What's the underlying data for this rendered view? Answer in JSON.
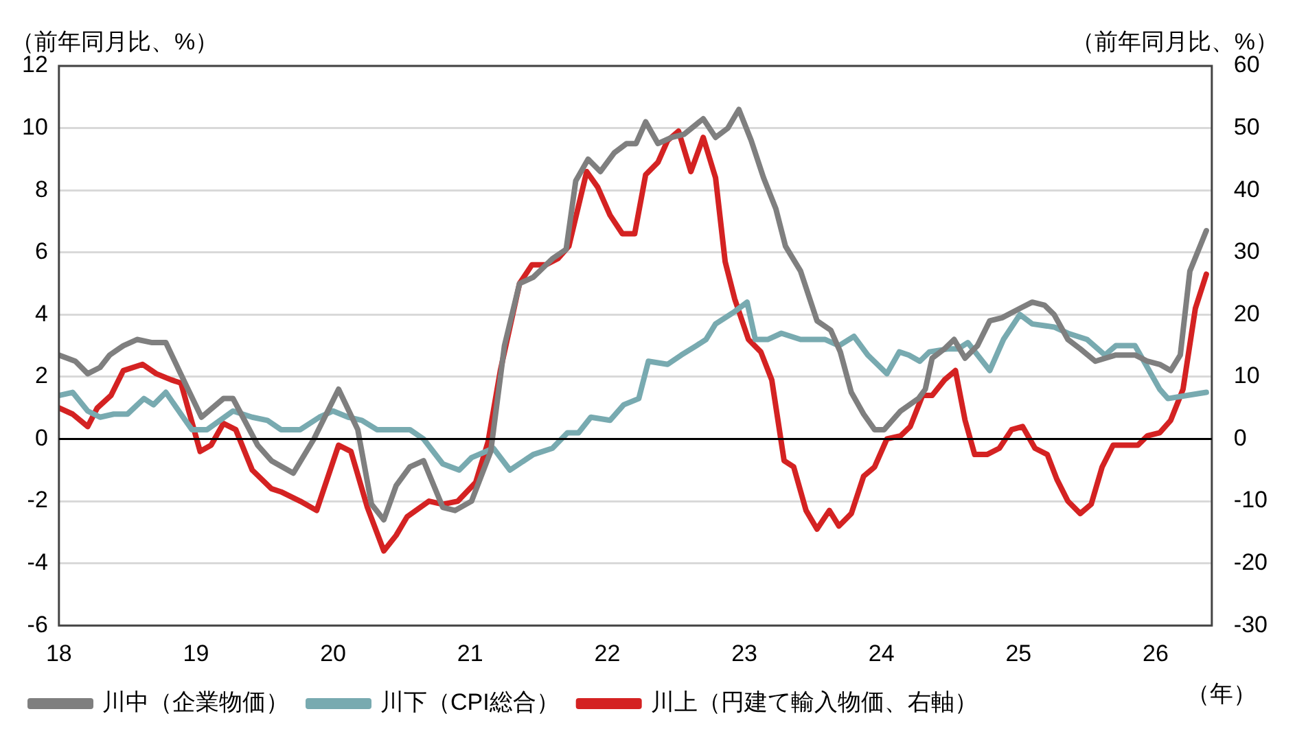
{
  "chart_data": {
    "type": "line",
    "ylabel": "（前年同月比、%）",
    "y2label": "（前年同月比、%）",
    "xlabel": "（年）",
    "xlim": [
      2018,
      2026.41
    ],
    "xticks": [
      {
        "value": 2018,
        "label": "18"
      },
      {
        "value": 2019,
        "label": "19"
      },
      {
        "value": 2020,
        "label": "20"
      },
      {
        "value": 2021,
        "label": "21"
      },
      {
        "value": 2022,
        "label": "22"
      },
      {
        "value": 2023,
        "label": "23"
      },
      {
        "value": 2024,
        "label": "24"
      },
      {
        "value": 2025,
        "label": "25"
      },
      {
        "value": 2026,
        "label": "26"
      }
    ],
    "ylim": [
      -6,
      12
    ],
    "yticks": [
      -6,
      -4,
      -2,
      0,
      2,
      4,
      6,
      8,
      10,
      12
    ],
    "y2lim": [
      -30,
      60
    ],
    "y2ticks": [
      -30,
      -20,
      -10,
      0,
      10,
      20,
      30,
      40,
      50,
      60
    ],
    "ref_lines": [
      {
        "axis": "y",
        "value": 0,
        "color": "#000000"
      }
    ],
    "grid": "y",
    "legend": "bottom",
    "marker": "none",
    "line_style": "solid",
    "series": [
      {
        "name": "川中（企業物価）",
        "color": "#7f7f7f",
        "x": [
          2018,
          2018.12,
          2018.21,
          2018.3,
          2018.37,
          2018.47,
          2018.57,
          2018.68,
          2018.78,
          2018.92,
          2019.04,
          2019.2,
          2019.27,
          2019.45,
          2019.55,
          2019.71,
          2019.86,
          2020.04,
          2020.18,
          2020.28,
          2020.37,
          2020.46,
          2020.56,
          2020.66,
          2020.8,
          2020.89,
          2021.01,
          2021.15,
          2021.25,
          2021.36,
          2021.46,
          2021.6,
          2021.7,
          2021.77,
          2021.86,
          2021.95,
          2022.05,
          2022.14,
          2022.21,
          2022.28,
          2022.37,
          2022.47,
          2022.56,
          2022.7,
          2022.79,
          2022.88,
          2022.96,
          2023.05,
          2023.14,
          2023.23,
          2023.3,
          2023.41,
          2023.53,
          2023.63,
          2023.7,
          2023.78,
          2023.87,
          2023.95,
          2024.02,
          2024.14,
          2024.27,
          2024.32,
          2024.37,
          2024.46,
          2024.53,
          2024.61,
          2024.7,
          2024.79,
          2024.88,
          2025.01,
          2025.1,
          2025.19,
          2025.26,
          2025.36,
          2025.45,
          2025.56,
          2025.71,
          2025.85,
          2025.94,
          2026.03,
          2026.11,
          2026.18,
          2026.25,
          2026.37
        ],
        "values": [
          2.7,
          2.5,
          2.1,
          2.3,
          2.7,
          3.0,
          3.2,
          3.1,
          3.1,
          1.8,
          0.7,
          1.3,
          1.3,
          -0.2,
          -0.7,
          -1.1,
          0.0,
          1.6,
          0.3,
          -2.1,
          -2.6,
          -1.5,
          -0.9,
          -0.7,
          -2.2,
          -2.3,
          -2.0,
          -0.4,
          3.0,
          5.0,
          5.2,
          5.8,
          6.1,
          8.3,
          9.0,
          8.6,
          9.2,
          9.5,
          9.5,
          10.2,
          9.5,
          9.7,
          9.8,
          10.3,
          9.7,
          10.0,
          10.6,
          9.6,
          8.4,
          7.4,
          6.2,
          5.4,
          3.8,
          3.5,
          2.8,
          1.5,
          0.8,
          0.3,
          0.3,
          0.9,
          1.3,
          1.6,
          2.6,
          2.9,
          3.2,
          2.6,
          3.0,
          3.8,
          3.9,
          4.2,
          4.4,
          4.3,
          4.0,
          3.2,
          2.9,
          2.5,
          2.7,
          2.7,
          2.5,
          2.4,
          2.2,
          2.7,
          5.4,
          6.7
        ]
      },
      {
        "name": "川下（CPI総合）",
        "color": "#78aab0",
        "x": [
          2018,
          2018.1,
          2018.21,
          2018.3,
          2018.4,
          2018.5,
          2018.62,
          2018.69,
          2018.78,
          2018.89,
          2018.97,
          2019.08,
          2019.27,
          2019.41,
          2019.52,
          2019.62,
          2019.76,
          2019.9,
          2020.0,
          2020.11,
          2020.21,
          2020.32,
          2020.46,
          2020.56,
          2020.66,
          2020.8,
          2020.92,
          2021.01,
          2021.17,
          2021.29,
          2021.46,
          2021.6,
          2021.71,
          2021.79,
          2021.88,
          2022.02,
          2022.12,
          2022.23,
          2022.3,
          2022.44,
          2022.54,
          2022.65,
          2022.72,
          2022.79,
          2022.93,
          2023.02,
          2023.08,
          2023.17,
          2023.27,
          2023.41,
          2023.59,
          2023.69,
          2023.8,
          2023.9,
          2024.04,
          2024.13,
          2024.2,
          2024.28,
          2024.35,
          2024.49,
          2024.56,
          2024.63,
          2024.79,
          2024.89,
          2025.01,
          2025.1,
          2025.26,
          2025.36,
          2025.5,
          2025.63,
          2025.71,
          2025.85,
          2025.94,
          2026.03,
          2026.09,
          2026.23,
          2026.37
        ],
        "values": [
          1.4,
          1.5,
          0.9,
          0.7,
          0.8,
          0.8,
          1.3,
          1.1,
          1.5,
          0.8,
          0.3,
          0.3,
          0.9,
          0.7,
          0.6,
          0.3,
          0.3,
          0.7,
          0.9,
          0.7,
          0.6,
          0.3,
          0.3,
          0.3,
          0.0,
          -0.8,
          -1.0,
          -0.6,
          -0.3,
          -1.0,
          -0.5,
          -0.3,
          0.2,
          0.2,
          0.7,
          0.6,
          1.1,
          1.3,
          2.5,
          2.4,
          2.7,
          3.0,
          3.2,
          3.7,
          4.1,
          4.4,
          3.2,
          3.2,
          3.4,
          3.2,
          3.2,
          3.0,
          3.3,
          2.7,
          2.1,
          2.8,
          2.7,
          2.5,
          2.8,
          2.9,
          2.9,
          3.1,
          2.2,
          3.2,
          4.0,
          3.7,
          3.6,
          3.4,
          3.2,
          2.7,
          3.0,
          3.0,
          2.3,
          1.6,
          1.3,
          1.4,
          1.5
        ]
      },
      {
        "name": "川上（円建て輸入物価、右軸）",
        "color": "#d42222",
        "axis": "y2",
        "x": [
          2018,
          2018.1,
          2018.21,
          2018.28,
          2018.38,
          2018.47,
          2018.61,
          2018.71,
          2018.82,
          2018.89,
          2019.03,
          2019.11,
          2019.2,
          2019.29,
          2019.41,
          2019.55,
          2019.62,
          2019.76,
          2019.88,
          2020.04,
          2020.13,
          2020.25,
          2020.37,
          2020.46,
          2020.54,
          2020.7,
          2020.8,
          2020.91,
          2021.04,
          2021.13,
          2021.22,
          2021.36,
          2021.45,
          2021.55,
          2021.64,
          2021.72,
          2021.85,
          2021.93,
          2022.02,
          2022.11,
          2022.2,
          2022.28,
          2022.37,
          2022.44,
          2022.52,
          2022.61,
          2022.7,
          2022.79,
          2022.86,
          2022.93,
          2023.03,
          2023.12,
          2023.2,
          2023.29,
          2023.36,
          2023.45,
          2023.53,
          2023.62,
          2023.69,
          2023.78,
          2023.87,
          2023.95,
          2024.04,
          2024.14,
          2024.21,
          2024.3,
          2024.37,
          2024.46,
          2024.54,
          2024.61,
          2024.68,
          2024.77,
          2024.86,
          2024.95,
          2025.03,
          2025.12,
          2025.21,
          2025.28,
          2025.36,
          2025.45,
          2025.53,
          2025.61,
          2025.69,
          2025.78,
          2025.87,
          2025.94,
          2026.03,
          2026.11,
          2026.2,
          2026.29,
          2026.37
        ],
        "values": [
          5,
          4,
          2,
          5,
          7,
          11,
          12,
          10.5,
          9.5,
          9,
          -2,
          -1,
          2.5,
          1.5,
          -5,
          -8,
          -8.5,
          -10,
          -11.5,
          -1,
          -2,
          -11,
          -18,
          -15.5,
          -12.5,
          -10,
          -10.5,
          -10,
          -7,
          -0.5,
          11,
          25,
          28,
          28,
          29,
          31,
          43,
          40.5,
          36,
          33,
          33,
          42.5,
          44.5,
          48,
          49.5,
          43,
          48.5,
          42,
          28.5,
          22.5,
          16,
          14,
          9.5,
          -3.5,
          -4.5,
          -11.5,
          -14.5,
          -11.5,
          -14,
          -12,
          -6,
          -4.5,
          0,
          0.5,
          2,
          7,
          7,
          9.5,
          11,
          3,
          -2.5,
          -2.5,
          -1.5,
          1.5,
          2,
          -1.5,
          -2.5,
          -6.5,
          -10,
          -12,
          -10.5,
          -4.5,
          -1,
          -1,
          -1,
          0.5,
          1,
          3,
          8,
          21,
          26.5
        ]
      }
    ]
  }
}
